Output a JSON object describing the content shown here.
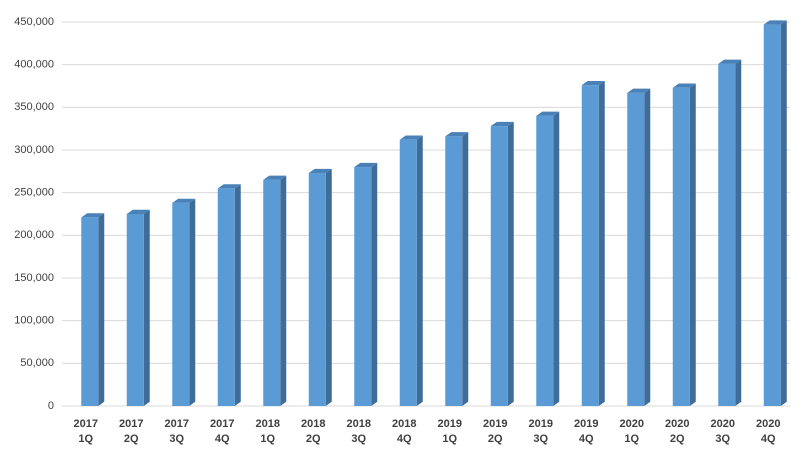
{
  "chart_data": {
    "type": "bar",
    "categories": [
      [
        "2017",
        "1Q"
      ],
      [
        "2017",
        "2Q"
      ],
      [
        "2017",
        "3Q"
      ],
      [
        "2017",
        "4Q"
      ],
      [
        "2018",
        "1Q"
      ],
      [
        "2018",
        "2Q"
      ],
      [
        "2018",
        "3Q"
      ],
      [
        "2018",
        "4Q"
      ],
      [
        "2019",
        "1Q"
      ],
      [
        "2019",
        "2Q"
      ],
      [
        "2019",
        "3Q"
      ],
      [
        "2019",
        "4Q"
      ],
      [
        "2020",
        "1Q"
      ],
      [
        "2020",
        "2Q"
      ],
      [
        "2020",
        "3Q"
      ],
      [
        "2020",
        "4Q"
      ]
    ],
    "values": [
      221000,
      225000,
      238000,
      255000,
      265000,
      273000,
      280000,
      312000,
      316000,
      328000,
      340000,
      376000,
      367000,
      373000,
      401000,
      447000
    ],
    "color": "#5b9bd5",
    "ylim": [
      0,
      450000
    ],
    "yticks": [
      0,
      {
        "value": 50000,
        "label": "50,000"
      },
      {
        "value": 100000,
        "label": "100,000"
      },
      {
        "value": 150000,
        "label": "150,000"
      },
      {
        "value": 200000,
        "label": "200,000"
      },
      {
        "value": 250000,
        "label": "250,000"
      },
      {
        "value": 300000,
        "label": "300,000"
      },
      {
        "value": 350000,
        "label": "350,000"
      },
      {
        "value": 400000,
        "label": "400,000"
      },
      {
        "value": 450000,
        "label": "450,000"
      }
    ],
    "grid": true
  }
}
